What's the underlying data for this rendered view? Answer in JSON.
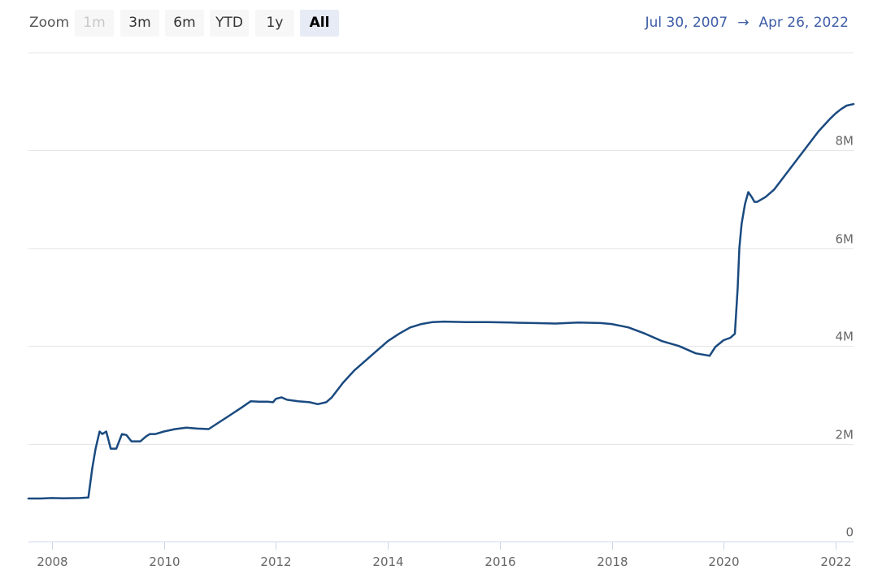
{
  "toolbar": {
    "zoom_label": "Zoom",
    "buttons": [
      {
        "label": "1m",
        "state": "disabled"
      },
      {
        "label": "3m",
        "state": "normal"
      },
      {
        "label": "6m",
        "state": "normal"
      },
      {
        "label": "YTD",
        "state": "normal"
      },
      {
        "label": "1y",
        "state": "normal"
      },
      {
        "label": "All",
        "state": "active"
      }
    ],
    "range_from": "Jul 30, 2007",
    "range_arrow": "→",
    "range_to": "Apr 26, 2022"
  },
  "colors": {
    "line": "#1a4a80",
    "grid": "#e6e6e6",
    "axis": "#ccd6eb",
    "range_text": "#3f5ea8"
  },
  "chart_data": {
    "type": "line",
    "title": "",
    "xlabel": "",
    "ylabel": "",
    "xlim": [
      2007.58,
      2022.32
    ],
    "ylim": [
      0,
      10000000
    ],
    "y_ticks": [
      0,
      2000000,
      4000000,
      6000000,
      8000000
    ],
    "y_tick_labels": [
      "0",
      "2M",
      "4M",
      "6M",
      "8M"
    ],
    "x_ticks": [
      2008,
      2010,
      2012,
      2014,
      2016,
      2018,
      2020,
      2022
    ],
    "x_tick_labels": [
      "2008",
      "2010",
      "2012",
      "2014",
      "2016",
      "2018",
      "2020",
      "2022"
    ],
    "grid": true,
    "legend": "none",
    "series": [
      {
        "x": [
          2007.58,
          2007.8,
          2008.0,
          2008.2,
          2008.5,
          2008.65,
          2008.72,
          2008.78,
          2008.85,
          2008.9,
          2008.97,
          2009.05,
          2009.15,
          2009.25,
          2009.33,
          2009.42,
          2009.5,
          2009.58,
          2009.68,
          2009.75,
          2009.85,
          2010.0,
          2010.2,
          2010.4,
          2010.6,
          2010.8,
          2011.0,
          2011.2,
          2011.4,
          2011.55,
          2011.7,
          2011.85,
          2011.95,
          2012.0,
          2012.1,
          2012.2,
          2012.4,
          2012.6,
          2012.75,
          2012.9,
          2013.0,
          2013.2,
          2013.4,
          2013.6,
          2013.8,
          2014.0,
          2014.2,
          2014.4,
          2014.6,
          2014.8,
          2015.0,
          2015.4,
          2015.8,
          2016.2,
          2016.6,
          2017.0,
          2017.4,
          2017.8,
          2018.0,
          2018.3,
          2018.6,
          2018.9,
          2019.2,
          2019.5,
          2019.75,
          2019.85,
          2020.0,
          2020.12,
          2020.2,
          2020.25,
          2020.28,
          2020.32,
          2020.38,
          2020.44,
          2020.5,
          2020.55,
          2020.6,
          2020.75,
          2020.9,
          2021.1,
          2021.3,
          2021.5,
          2021.7,
          2021.9,
          2022.0,
          2022.1,
          2022.2,
          2022.32
        ],
        "y": [
          880000,
          880000,
          890000,
          885000,
          890000,
          900000,
          1500000,
          1900000,
          2250000,
          2200000,
          2250000,
          1900000,
          1900000,
          2200000,
          2180000,
          2050000,
          2050000,
          2050000,
          2150000,
          2200000,
          2200000,
          2250000,
          2300000,
          2330000,
          2310000,
          2300000,
          2450000,
          2600000,
          2750000,
          2870000,
          2860000,
          2860000,
          2850000,
          2920000,
          2950000,
          2900000,
          2870000,
          2850000,
          2810000,
          2850000,
          2950000,
          3250000,
          3500000,
          3700000,
          3900000,
          4100000,
          4250000,
          4380000,
          4450000,
          4490000,
          4500000,
          4490000,
          4490000,
          4480000,
          4470000,
          4460000,
          4480000,
          4470000,
          4450000,
          4380000,
          4250000,
          4100000,
          4000000,
          3850000,
          3800000,
          3980000,
          4120000,
          4170000,
          4250000,
          5200000,
          6000000,
          6500000,
          6900000,
          7150000,
          7050000,
          6950000,
          6950000,
          7050000,
          7200000,
          7500000,
          7800000,
          8100000,
          8400000,
          8650000,
          8760000,
          8850000,
          8920000,
          8950000
        ]
      }
    ]
  }
}
